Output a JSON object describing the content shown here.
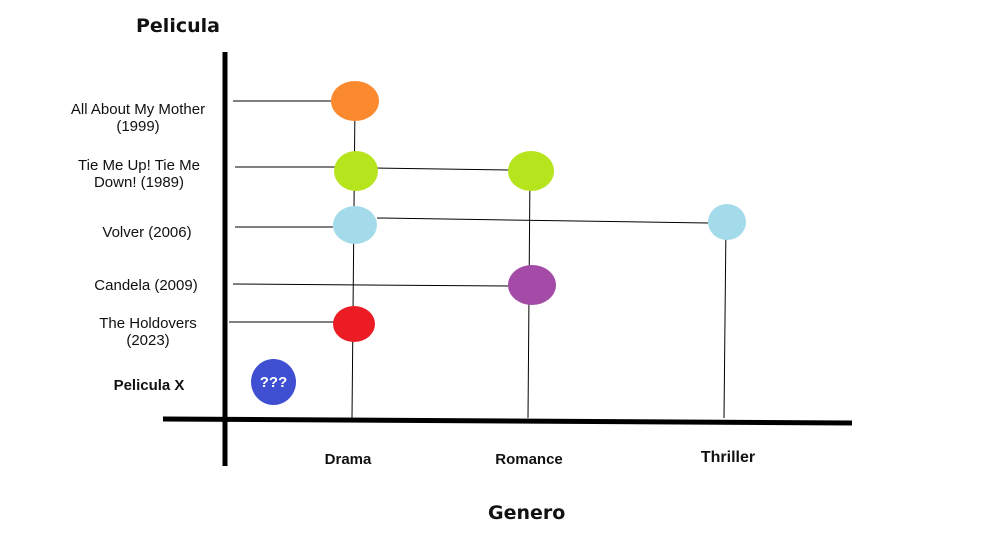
{
  "y_axis_title": "Pelicula",
  "x_axis_title": "Genero",
  "categories": [
    "Drama",
    "Romance",
    "Thriller"
  ],
  "movies": [
    "All About My Mother\n(1999)",
    "Tie Me Up! Tie Me\nDown! (1989)",
    "Volver (2006)",
    "Candela (2009)",
    "The Holdovers\n(2023)",
    "Pelicula X"
  ],
  "unknown_label": "???",
  "colors": {
    "all_about_my_mother": "#fb8a2e",
    "tie_me_up": "#b6e51e",
    "volver": "#a3dbea",
    "candela": "#a34ba6",
    "holdovers": "#ec1c24",
    "pelicula_x": "#3f4fd2"
  },
  "memberships": [
    {
      "movie": "All About My Mother (1999)",
      "genres": [
        "Drama"
      ]
    },
    {
      "movie": "Tie Me Up! Tie Me Down! (1989)",
      "genres": [
        "Drama",
        "Romance"
      ]
    },
    {
      "movie": "Volver (2006)",
      "genres": [
        "Drama",
        "Thriller"
      ]
    },
    {
      "movie": "Candela (2009)",
      "genres": [
        "Romance"
      ]
    },
    {
      "movie": "The Holdovers (2023)",
      "genres": [
        "Drama"
      ]
    },
    {
      "movie": "Pelicula X",
      "genres": []
    }
  ]
}
